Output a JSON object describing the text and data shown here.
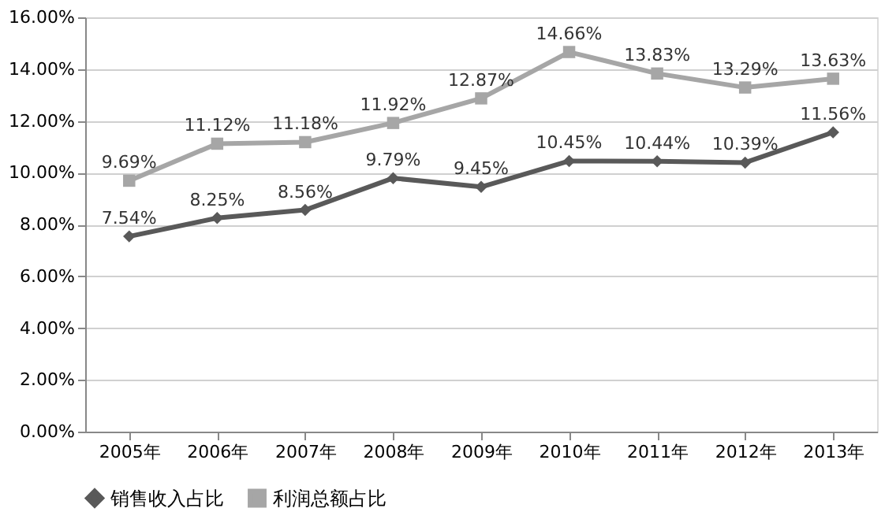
{
  "chart_data": {
    "type": "line",
    "categories": [
      "2005年",
      "2006年",
      "2007年",
      "2008年",
      "2009年",
      "2010年",
      "2011年",
      "2012年",
      "2013年"
    ],
    "series": [
      {
        "name": "销售收入占比",
        "color": "#595959",
        "marker": "diamond",
        "values": [
          7.54,
          8.25,
          8.56,
          9.79,
          9.45,
          10.45,
          10.44,
          10.39,
          11.56
        ],
        "value_labels": [
          "7.54%",
          "8.25%",
          "8.56%",
          "9.79%",
          "9.45%",
          "10.45%",
          "10.44%",
          "10.39%",
          "11.56%"
        ]
      },
      {
        "name": "利润总额占比",
        "color": "#a6a6a6",
        "marker": "square",
        "values": [
          9.69,
          11.12,
          11.18,
          11.92,
          12.87,
          14.66,
          13.83,
          13.29,
          13.63
        ],
        "value_labels": [
          "9.69%",
          "11.12%",
          "11.18%",
          "11.92%",
          "12.87%",
          "14.66%",
          "13.83%",
          "13.29%",
          "13.63%"
        ]
      }
    ],
    "ylim": [
      0,
      16
    ],
    "yticks": [
      {
        "value": 0,
        "label": "0.00%"
      },
      {
        "value": 2,
        "label": "2.00%"
      },
      {
        "value": 4,
        "label": "4.00%"
      },
      {
        "value": 6,
        "label": "6.00%"
      },
      {
        "value": 8,
        "label": "8.00%"
      },
      {
        "value": 10,
        "label": "10.00%"
      },
      {
        "value": 12,
        "label": "12.00%"
      },
      {
        "value": 14,
        "label": "14.00%"
      },
      {
        "value": 16,
        "label": "16.00%"
      }
    ],
    "grid": "y",
    "legend": "bottom",
    "line_style": "solid"
  }
}
